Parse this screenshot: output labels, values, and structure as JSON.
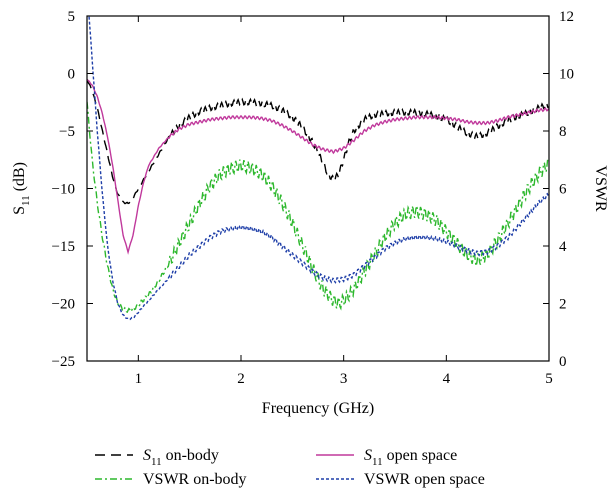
{
  "chart_data": {
    "type": "line",
    "xlabel": "Frequency (GHz)",
    "ylabel_left": {
      "symbol": "S",
      "sub": "11",
      "unit": " (dB)"
    },
    "ylabel_right": "VSWR",
    "xlim": [
      0.5,
      5
    ],
    "ylim_left": [
      -25,
      5
    ],
    "ylim_right": [
      0,
      12
    ],
    "x_ticks": [
      "1",
      "2",
      "3",
      "4",
      "5"
    ],
    "y_left_ticks": [
      "5",
      "0",
      "−5",
      "−10",
      "−15",
      "−20",
      "−25"
    ],
    "y_right_ticks": [
      "12",
      "10",
      "8",
      "6",
      "4",
      "2",
      "0"
    ],
    "grid": false,
    "legend_position": "bottom",
    "series": [
      {
        "name_symbol": "S",
        "name_sub": "11",
        "name_rest": " on-body",
        "axis": "left",
        "color": "#000000",
        "dash": "dashed",
        "noise": 0.25,
        "points": [
          [
            0.5,
            -0.5
          ],
          [
            0.55,
            -1.5
          ],
          [
            0.6,
            -3
          ],
          [
            0.65,
            -5
          ],
          [
            0.7,
            -7
          ],
          [
            0.75,
            -9
          ],
          [
            0.8,
            -10.5
          ],
          [
            0.85,
            -11.2
          ],
          [
            0.9,
            -11.3
          ],
          [
            0.95,
            -10.8
          ],
          [
            1.0,
            -10
          ],
          [
            1.1,
            -8.5
          ],
          [
            1.2,
            -7
          ],
          [
            1.3,
            -5.5
          ],
          [
            1.4,
            -4.5
          ],
          [
            1.5,
            -3.8
          ],
          [
            1.6,
            -3.3
          ],
          [
            1.7,
            -3
          ],
          [
            1.8,
            -2.8
          ],
          [
            1.9,
            -2.6
          ],
          [
            2.0,
            -2.5
          ],
          [
            2.1,
            -2.5
          ],
          [
            2.2,
            -2.6
          ],
          [
            2.3,
            -2.8
          ],
          [
            2.4,
            -3.2
          ],
          [
            2.5,
            -3.8
          ],
          [
            2.6,
            -4.7
          ],
          [
            2.7,
            -6
          ],
          [
            2.8,
            -7.8
          ],
          [
            2.85,
            -8.8
          ],
          [
            2.9,
            -9.2
          ],
          [
            2.95,
            -8.8
          ],
          [
            3.0,
            -7.5
          ],
          [
            3.05,
            -6
          ],
          [
            3.1,
            -5
          ],
          [
            3.2,
            -4
          ],
          [
            3.3,
            -3.6
          ],
          [
            3.4,
            -3.5
          ],
          [
            3.5,
            -3.4
          ],
          [
            3.6,
            -3.4
          ],
          [
            3.7,
            -3.4
          ],
          [
            3.8,
            -3.5
          ],
          [
            3.9,
            -3.7
          ],
          [
            4.0,
            -4.0
          ],
          [
            4.1,
            -4.6
          ],
          [
            4.2,
            -5.2
          ],
          [
            4.3,
            -5.5
          ],
          [
            4.4,
            -5.2
          ],
          [
            4.5,
            -4.6
          ],
          [
            4.6,
            -4.1
          ],
          [
            4.7,
            -3.7
          ],
          [
            4.8,
            -3.4
          ],
          [
            4.9,
            -3.0
          ],
          [
            5.0,
            -2.7
          ]
        ]
      },
      {
        "name_symbol": "S",
        "name_sub": "11",
        "name_rest": " open space",
        "axis": "left",
        "color": "#c0399c",
        "dash": "solid",
        "noise": 0.12,
        "points": [
          [
            0.5,
            -0.5
          ],
          [
            0.55,
            -1
          ],
          [
            0.6,
            -2
          ],
          [
            0.65,
            -3.5
          ],
          [
            0.7,
            -5.5
          ],
          [
            0.75,
            -8
          ],
          [
            0.8,
            -11
          ],
          [
            0.85,
            -14
          ],
          [
            0.9,
            -15.5
          ],
          [
            0.95,
            -14
          ],
          [
            1.0,
            -11.5
          ],
          [
            1.05,
            -9.5
          ],
          [
            1.1,
            -8
          ],
          [
            1.2,
            -6.5
          ],
          [
            1.3,
            -5.5
          ],
          [
            1.4,
            -4.8
          ],
          [
            1.5,
            -4.4
          ],
          [
            1.6,
            -4.2
          ],
          [
            1.7,
            -4.0
          ],
          [
            1.8,
            -3.9
          ],
          [
            1.9,
            -3.8
          ],
          [
            2.0,
            -3.8
          ],
          [
            2.1,
            -3.8
          ],
          [
            2.2,
            -3.9
          ],
          [
            2.3,
            -4.1
          ],
          [
            2.4,
            -4.5
          ],
          [
            2.5,
            -5.0
          ],
          [
            2.6,
            -5.6
          ],
          [
            2.7,
            -6.2
          ],
          [
            2.8,
            -6.6
          ],
          [
            2.9,
            -6.8
          ],
          [
            3.0,
            -6.5
          ],
          [
            3.1,
            -5.8
          ],
          [
            3.2,
            -5.0
          ],
          [
            3.3,
            -4.5
          ],
          [
            3.4,
            -4.2
          ],
          [
            3.5,
            -4.0
          ],
          [
            3.6,
            -3.9
          ],
          [
            3.7,
            -3.8
          ],
          [
            3.8,
            -3.8
          ],
          [
            3.9,
            -3.8
          ],
          [
            4.0,
            -3.9
          ],
          [
            4.1,
            -4.0
          ],
          [
            4.2,
            -4.2
          ],
          [
            4.3,
            -4.3
          ],
          [
            4.4,
            -4.3
          ],
          [
            4.5,
            -4.1
          ],
          [
            4.6,
            -3.8
          ],
          [
            4.7,
            -3.6
          ],
          [
            4.8,
            -3.4
          ],
          [
            4.9,
            -3.2
          ],
          [
            5.0,
            -3.1
          ]
        ]
      },
      {
        "name_symbol": "",
        "name_sub": "",
        "name_rest": "VSWR on-body",
        "axis": "right",
        "color": "#2db82d",
        "dash": "dashdot",
        "noise": 0.22,
        "points": [
          [
            0.5,
            9.0
          ],
          [
            0.55,
            7.0
          ],
          [
            0.6,
            5.5
          ],
          [
            0.65,
            4.3
          ],
          [
            0.7,
            3.3
          ],
          [
            0.75,
            2.5
          ],
          [
            0.8,
            2.0
          ],
          [
            0.85,
            1.8
          ],
          [
            0.9,
            1.75
          ],
          [
            0.95,
            1.8
          ],
          [
            1.0,
            1.95
          ],
          [
            1.1,
            2.3
          ],
          [
            1.2,
            2.8
          ],
          [
            1.3,
            3.4
          ],
          [
            1.4,
            4.1
          ],
          [
            1.5,
            4.8
          ],
          [
            1.6,
            5.5
          ],
          [
            1.7,
            6.1
          ],
          [
            1.8,
            6.5
          ],
          [
            1.9,
            6.7
          ],
          [
            2.0,
            6.8
          ],
          [
            2.1,
            6.7
          ],
          [
            2.2,
            6.5
          ],
          [
            2.3,
            6.1
          ],
          [
            2.4,
            5.5
          ],
          [
            2.5,
            4.8
          ],
          [
            2.6,
            4.0
          ],
          [
            2.7,
            3.2
          ],
          [
            2.8,
            2.5
          ],
          [
            2.9,
            2.1
          ],
          [
            2.95,
            2.0
          ],
          [
            3.0,
            2.1
          ],
          [
            3.1,
            2.5
          ],
          [
            3.2,
            3.1
          ],
          [
            3.3,
            3.7
          ],
          [
            3.4,
            4.3
          ],
          [
            3.5,
            4.8
          ],
          [
            3.6,
            5.1
          ],
          [
            3.7,
            5.2
          ],
          [
            3.8,
            5.1
          ],
          [
            3.9,
            4.9
          ],
          [
            4.0,
            4.5
          ],
          [
            4.1,
            4.1
          ],
          [
            4.2,
            3.7
          ],
          [
            4.3,
            3.5
          ],
          [
            4.4,
            3.7
          ],
          [
            4.5,
            4.2
          ],
          [
            4.6,
            4.8
          ],
          [
            4.7,
            5.4
          ],
          [
            4.8,
            6.0
          ],
          [
            4.9,
            6.5
          ],
          [
            5.0,
            6.9
          ]
        ]
      },
      {
        "name_symbol": "",
        "name_sub": "",
        "name_rest": "VSWR open space",
        "axis": "right",
        "color": "#1f3fa8",
        "dash": "dotted",
        "noise": 0.08,
        "points": [
          [
            0.52,
            12
          ],
          [
            0.55,
            10.5
          ],
          [
            0.6,
            8.0
          ],
          [
            0.65,
            5.8
          ],
          [
            0.7,
            4.0
          ],
          [
            0.75,
            2.8
          ],
          [
            0.8,
            2.0
          ],
          [
            0.85,
            1.6
          ],
          [
            0.9,
            1.45
          ],
          [
            0.95,
            1.5
          ],
          [
            1.0,
            1.7
          ],
          [
            1.1,
            2.1
          ],
          [
            1.2,
            2.5
          ],
          [
            1.3,
            2.9
          ],
          [
            1.4,
            3.3
          ],
          [
            1.5,
            3.7
          ],
          [
            1.6,
            4.0
          ],
          [
            1.7,
            4.3
          ],
          [
            1.8,
            4.5
          ],
          [
            1.9,
            4.6
          ],
          [
            2.0,
            4.65
          ],
          [
            2.1,
            4.6
          ],
          [
            2.2,
            4.5
          ],
          [
            2.3,
            4.3
          ],
          [
            2.4,
            4.0
          ],
          [
            2.5,
            3.7
          ],
          [
            2.6,
            3.4
          ],
          [
            2.7,
            3.1
          ],
          [
            2.8,
            2.9
          ],
          [
            2.9,
            2.8
          ],
          [
            3.0,
            2.85
          ],
          [
            3.1,
            3.0
          ],
          [
            3.2,
            3.3
          ],
          [
            3.3,
            3.6
          ],
          [
            3.4,
            3.9
          ],
          [
            3.5,
            4.1
          ],
          [
            3.6,
            4.25
          ],
          [
            3.7,
            4.3
          ],
          [
            3.8,
            4.3
          ],
          [
            3.9,
            4.25
          ],
          [
            4.0,
            4.15
          ],
          [
            4.1,
            4.0
          ],
          [
            4.2,
            3.85
          ],
          [
            4.3,
            3.75
          ],
          [
            4.4,
            3.8
          ],
          [
            4.5,
            4.0
          ],
          [
            4.6,
            4.3
          ],
          [
            4.7,
            4.7
          ],
          [
            4.8,
            5.1
          ],
          [
            4.9,
            5.5
          ],
          [
            5.0,
            5.8
          ]
        ]
      }
    ]
  }
}
